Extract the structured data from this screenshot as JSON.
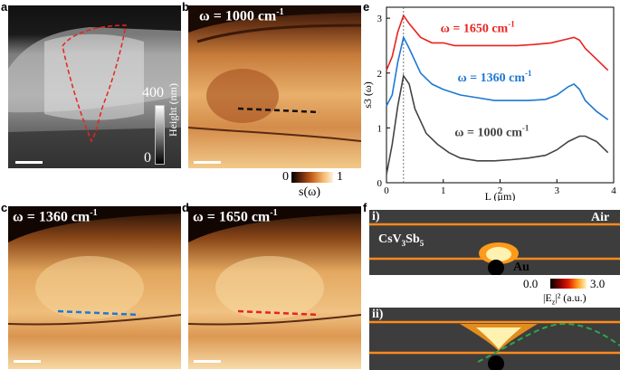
{
  "panels": {
    "a": {
      "letter": "a",
      "cbar_max": "400",
      "cbar_min": "0",
      "cbar_title": "Height (nm)"
    },
    "b": {
      "letter": "b",
      "omega_label": "ω = 1000 cm",
      "sup": "-1",
      "dash_color": "#111111"
    },
    "c": {
      "letter": "c",
      "omega_label": "ω = 1360 cm",
      "sup": "-1",
      "dash_color": "#1f77d4"
    },
    "d": {
      "letter": "d",
      "omega_label": "ω = 1650 cm",
      "sup": "-1",
      "dash_color": "#e8231f"
    },
    "e": {
      "letter": "e"
    },
    "f": {
      "letter": "f",
      "sub_i": "i)",
      "sub_ii": "ii)",
      "air": "Air",
      "material": "CsV",
      "sub3": "3",
      "sb": "Sb",
      "sub5": "5",
      "au": "Au",
      "cbar_min": "0.0",
      "cbar_max": "3.0",
      "cbar_title": "|E",
      "cbar_sub": "z",
      "cbar_tail": "|² (a.u.)"
    }
  },
  "sbar": {
    "min": "0",
    "max": "1",
    "label": "s(ω)"
  },
  "chart_data": {
    "type": "line",
    "title": "",
    "xlabel": "L (μm)",
    "ylabel": "s3 (ω)",
    "xlim": [
      0,
      4
    ],
    "ylim": [
      0,
      3.2
    ],
    "xticks": [
      "0",
      "1",
      "2",
      "3",
      "4"
    ],
    "yticks": [
      "0",
      "1",
      "2",
      "3"
    ],
    "vline_x": 0.3,
    "series": [
      {
        "name": "ω = 1650 cm-1",
        "label_main": "ω = 1650 cm",
        "label_sup": "-1",
        "color": "#e8231f",
        "x": [
          0.0,
          0.1,
          0.2,
          0.3,
          0.4,
          0.6,
          0.8,
          1.0,
          1.2,
          1.5,
          1.8,
          2.0,
          2.3,
          2.6,
          2.9,
          3.1,
          3.3,
          3.4,
          3.5,
          3.7,
          3.9
        ],
        "y": [
          2.05,
          2.3,
          2.75,
          3.05,
          2.9,
          2.65,
          2.55,
          2.55,
          2.5,
          2.5,
          2.5,
          2.5,
          2.5,
          2.52,
          2.55,
          2.6,
          2.65,
          2.6,
          2.45,
          2.25,
          2.05
        ]
      },
      {
        "name": "ω = 1360 cm-1",
        "label_main": "ω = 1360 cm",
        "label_sup": "-1",
        "color": "#1f77d4",
        "x": [
          0.0,
          0.1,
          0.2,
          0.3,
          0.4,
          0.6,
          0.8,
          1.0,
          1.3,
          1.6,
          1.9,
          2.2,
          2.5,
          2.8,
          3.0,
          3.2,
          3.3,
          3.4,
          3.5,
          3.7,
          3.9
        ],
        "y": [
          1.4,
          1.6,
          2.2,
          2.65,
          2.45,
          2.0,
          1.8,
          1.7,
          1.6,
          1.55,
          1.5,
          1.5,
          1.5,
          1.52,
          1.6,
          1.75,
          1.8,
          1.7,
          1.5,
          1.3,
          1.15
        ]
      },
      {
        "name": "ω = 1000 cm-1",
        "label_main": "ω = 1000 cm",
        "label_sup": "-1",
        "color": "#444444",
        "x": [
          0.0,
          0.1,
          0.2,
          0.3,
          0.4,
          0.5,
          0.7,
          0.9,
          1.1,
          1.3,
          1.6,
          1.9,
          2.2,
          2.5,
          2.8,
          3.0,
          3.2,
          3.4,
          3.5,
          3.7,
          3.9
        ],
        "y": [
          0.15,
          0.7,
          1.4,
          1.95,
          1.8,
          1.35,
          0.9,
          0.7,
          0.55,
          0.45,
          0.4,
          0.4,
          0.42,
          0.45,
          0.5,
          0.6,
          0.75,
          0.85,
          0.85,
          0.75,
          0.55
        ]
      }
    ]
  }
}
